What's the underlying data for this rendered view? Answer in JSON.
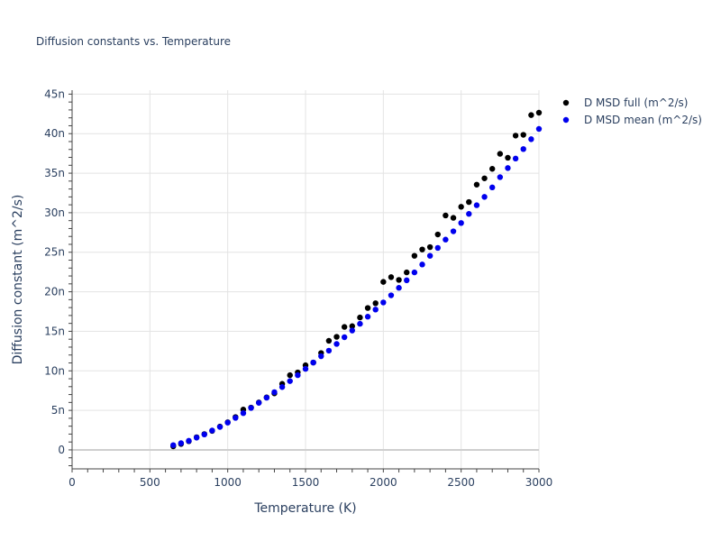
{
  "chart_data": {
    "type": "scatter",
    "title": "Diffusion constants vs. Temperature",
    "xlabel": "Temperature (K)",
    "ylabel": "Diffusion constant (m^2/s)",
    "xlim": [
      0,
      3000
    ],
    "ylim": [
      -2.4e-09,
      4.55e-08
    ],
    "x_ticks": [
      0,
      500,
      1000,
      1500,
      2000,
      2500,
      3000
    ],
    "x_tick_labels": [
      "0",
      "500",
      "1000",
      "1500",
      "2000",
      "2500",
      "3000"
    ],
    "y_ticks": [
      0,
      5e-09,
      1e-08,
      1.5e-08,
      2e-08,
      2.5e-08,
      3e-08,
      3.5e-08,
      4e-08,
      4.5e-08
    ],
    "y_tick_labels": [
      "0",
      "5n",
      "10n",
      "15n",
      "20n",
      "25n",
      "30n",
      "35n",
      "40n",
      "45n"
    ],
    "grid": true,
    "legend_position": "top-right",
    "x": [
      650,
      700,
      750,
      800,
      850,
      900,
      950,
      1000,
      1050,
      1100,
      1150,
      1200,
      1250,
      1300,
      1350,
      1400,
      1450,
      1500,
      1550,
      1600,
      1650,
      1700,
      1750,
      1800,
      1850,
      1900,
      1950,
      2000,
      2050,
      2100,
      2150,
      2200,
      2250,
      2300,
      2350,
      2400,
      2450,
      2500,
      2550,
      2600,
      2650,
      2700,
      2750,
      2800,
      2850,
      2900,
      2950,
      3000
    ],
    "series": [
      {
        "name": "D MSD full (m^2/s)",
        "color": "#000000",
        "values": [
          4.5e-10,
          7.5e-10,
          1.1e-09,
          1.6e-09,
          2e-09,
          2.4e-09,
          2.95e-09,
          3.5e-09,
          4.15e-09,
          5.1e-09,
          5.35e-09,
          6e-09,
          6.65e-09,
          7.15e-09,
          8.35e-09,
          9.45e-09,
          9.8e-09,
          1.07e-08,
          1.105e-08,
          1.225e-08,
          1.38e-08,
          1.43e-08,
          1.555e-08,
          1.565e-08,
          1.675e-08,
          1.795e-08,
          1.855e-08,
          2.125e-08,
          2.185e-08,
          2.15e-08,
          2.245e-08,
          2.455e-08,
          2.535e-08,
          2.565e-08,
          2.725e-08,
          2.965e-08,
          2.935e-08,
          3.075e-08,
          3.135e-08,
          3.355e-08,
          3.435e-08,
          3.555e-08,
          3.745e-08,
          3.695e-08,
          3.975e-08,
          3.985e-08,
          4.235e-08,
          4.265e-08
        ]
      },
      {
        "name": "D MSD mean (m^2/s)",
        "color": "#0000ee",
        "values": [
          6e-10,
          8.5e-10,
          1.15e-09,
          1.55e-09,
          1.95e-09,
          2.45e-09,
          2.9e-09,
          3.45e-09,
          4.05e-09,
          4.65e-09,
          5.3e-09,
          5.95e-09,
          6.6e-09,
          7.3e-09,
          7.95e-09,
          8.7e-09,
          9.45e-09,
          1.025e-08,
          1.105e-08,
          1.185e-08,
          1.255e-08,
          1.34e-08,
          1.425e-08,
          1.51e-08,
          1.595e-08,
          1.685e-08,
          1.775e-08,
          1.865e-08,
          1.955e-08,
          2.05e-08,
          2.145e-08,
          2.245e-08,
          2.345e-08,
          2.455e-08,
          2.555e-08,
          2.66e-08,
          2.765e-08,
          2.87e-08,
          2.985e-08,
          3.095e-08,
          3.2e-08,
          3.32e-08,
          3.45e-08,
          3.565e-08,
          3.685e-08,
          3.805e-08,
          3.93e-08,
          4.06e-08
        ]
      }
    ]
  }
}
